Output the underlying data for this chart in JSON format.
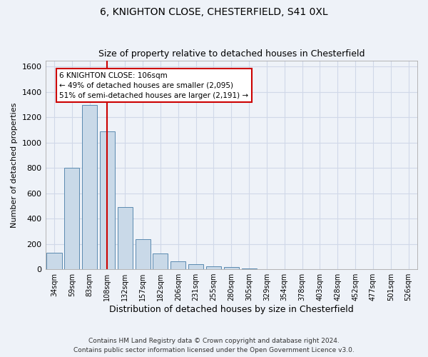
{
  "title1": "6, KNIGHTON CLOSE, CHESTERFIELD, S41 0XL",
  "title2": "Size of property relative to detached houses in Chesterfield",
  "xlabel": "Distribution of detached houses by size in Chesterfield",
  "ylabel": "Number of detached properties",
  "footer1": "Contains HM Land Registry data © Crown copyright and database right 2024.",
  "footer2": "Contains public sector information licensed under the Open Government Licence v3.0.",
  "categories": [
    "34sqm",
    "59sqm",
    "83sqm",
    "108sqm",
    "132sqm",
    "157sqm",
    "182sqm",
    "206sqm",
    "231sqm",
    "255sqm",
    "280sqm",
    "305sqm",
    "329sqm",
    "354sqm",
    "378sqm",
    "403sqm",
    "428sqm",
    "452sqm",
    "477sqm",
    "501sqm",
    "526sqm"
  ],
  "values": [
    130,
    800,
    1300,
    1090,
    490,
    235,
    125,
    65,
    40,
    25,
    15,
    5,
    0,
    0,
    0,
    0,
    0,
    0,
    0,
    0,
    0
  ],
  "bar_color": "#c9d9e8",
  "bar_edge_color": "#5a8ab0",
  "vline_x_index": 3,
  "vline_color": "#cc0000",
  "annotation_text": "6 KNIGHTON CLOSE: 106sqm\n← 49% of detached houses are smaller (2,095)\n51% of semi-detached houses are larger (2,191) →",
  "annotation_box_color": "#ffffff",
  "annotation_box_edge_color": "#cc0000",
  "ylim": [
    0,
    1650
  ],
  "yticks": [
    0,
    200,
    400,
    600,
    800,
    1000,
    1200,
    1400,
    1600
  ],
  "grid_color": "#d0d8e8",
  "background_color": "#eef2f8"
}
